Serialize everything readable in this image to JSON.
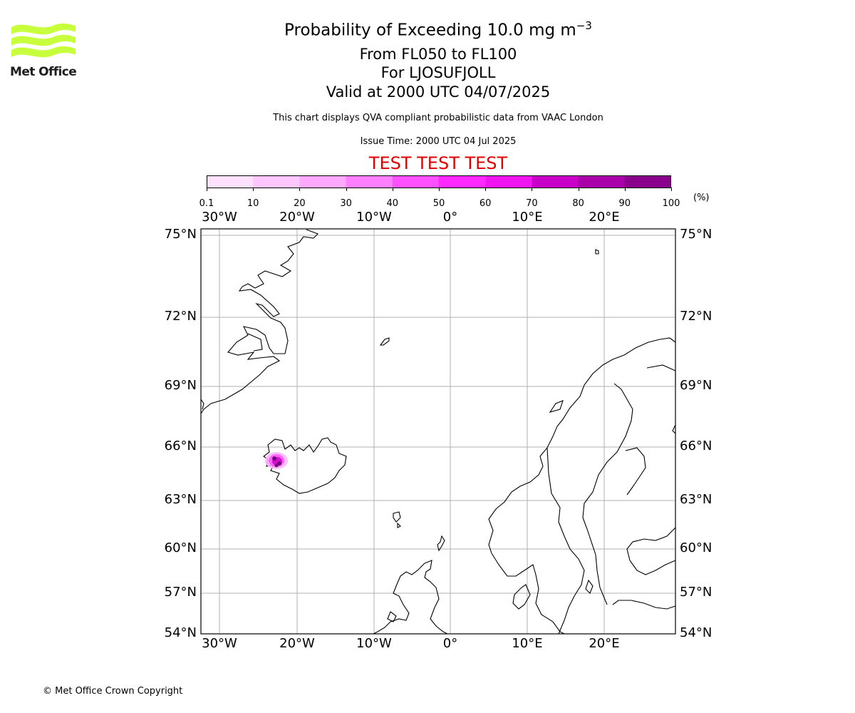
{
  "logo": {
    "text": "Met Office",
    "color": "#c8ff3c"
  },
  "title": {
    "line1_prefix": "Probability of Exceeding 10.0 mg m",
    "line1_exp": "−3",
    "line2": "From FL050 to FL100",
    "line3": "For LJOSUFJOLL",
    "line4": "Valid at 2000 UTC 04/07/2025",
    "subtitle": "This chart displays QVA compliant probabilistic data from VAAC London",
    "issue_time": "Issue Time: 2000 UTC 04 Jul 2025",
    "test_banner": "TEST TEST TEST"
  },
  "colorbar": {
    "ticks": [
      "0.1",
      "10",
      "20",
      "30",
      "40",
      "50",
      "60",
      "70",
      "80",
      "90",
      "100"
    ],
    "unit": "(%)",
    "colors": [
      "#ffe0ff",
      "#ffc6ff",
      "#ffa8ff",
      "#ff80ff",
      "#ff50ff",
      "#ff28ff",
      "#f014f0",
      "#c800c8",
      "#aa00aa",
      "#8a008a",
      "#640064"
    ]
  },
  "map": {
    "lon_labels": [
      "30°W",
      "20°W",
      "10°W",
      "0°",
      "10°E",
      "20°E"
    ],
    "lat_labels": [
      "75°N",
      "72°N",
      "69°N",
      "66°N",
      "63°N",
      "60°N",
      "57°N",
      "54°N"
    ],
    "plume_colors": [
      "#ffb4ff",
      "#ff50ff",
      "#c800c8",
      "#640064"
    ],
    "coast_color": "#000000",
    "grid_color": "#b0b0b0"
  },
  "footer": {
    "copyright": "© Met Office Crown Copyright"
  }
}
